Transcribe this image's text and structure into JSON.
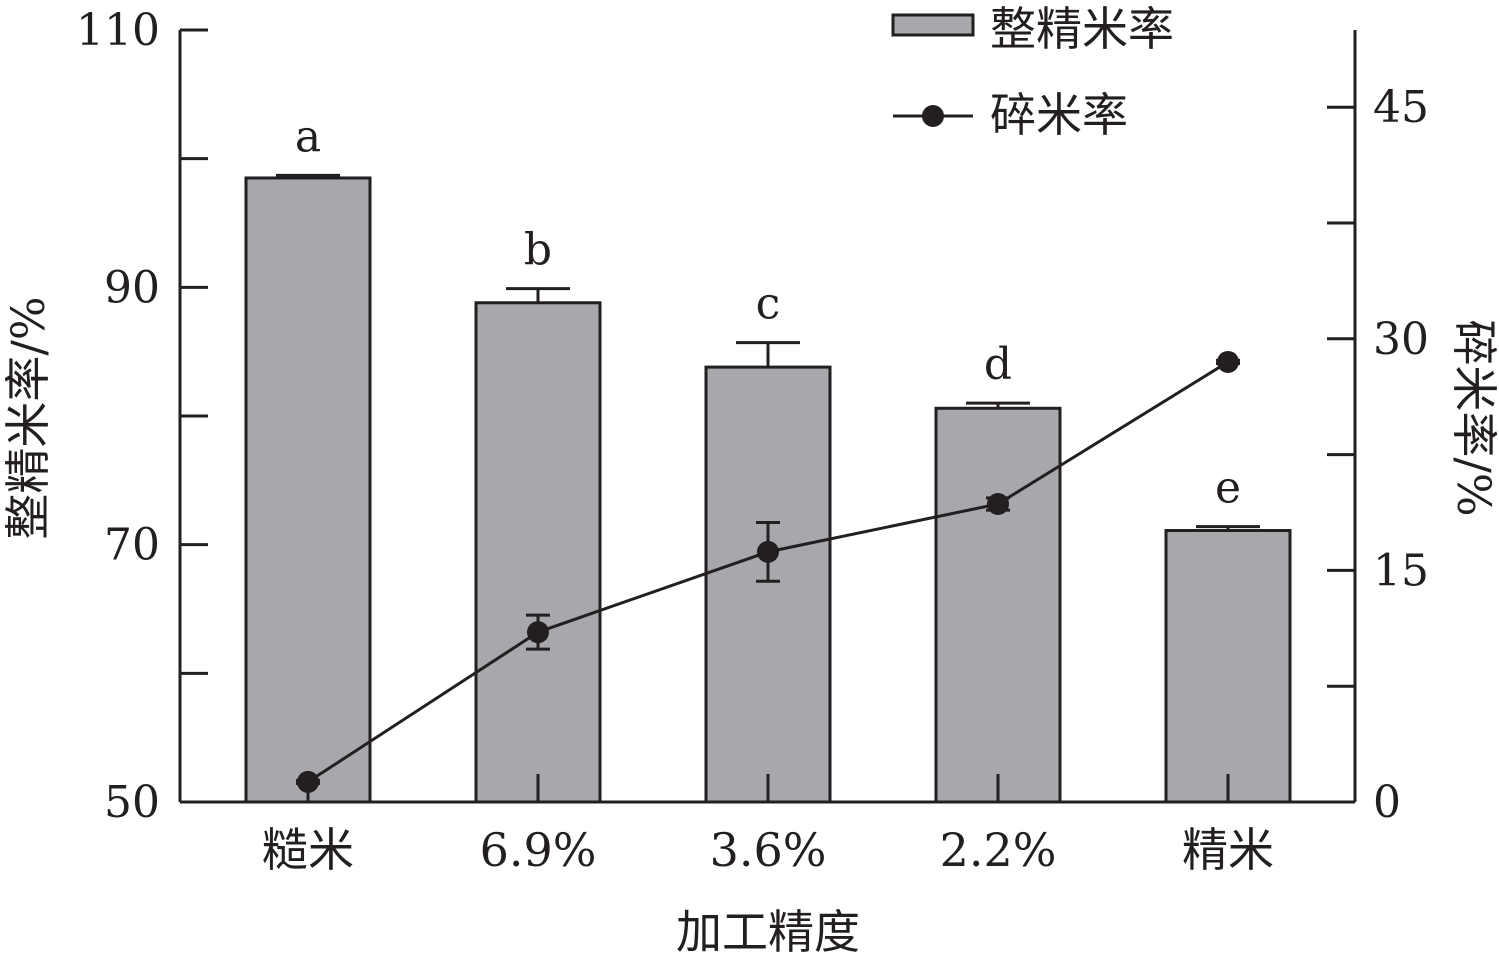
{
  "chart_data": {
    "type": "bar",
    "categories": [
      "糙米",
      "6.9%",
      "3.6%",
      "2.2%",
      "精米"
    ],
    "xlabel": "加工精度",
    "ylabel": "整精米率/%",
    "y2label": "碎米率/%",
    "ylim": [
      50,
      110
    ],
    "yticks": [
      50,
      70,
      90,
      110
    ],
    "y2lim": [
      0,
      50
    ],
    "y2ticks": [
      0,
      15,
      30,
      45
    ],
    "series": [
      {
        "name": "整精米率",
        "type": "bar",
        "axis": "left",
        "values": [
          98.5,
          88.8,
          83.8,
          80.6,
          71.1
        ],
        "errors": [
          0.2,
          1.1,
          1.9,
          0.4,
          0.3
        ],
        "labels": [
          "a",
          "b",
          "c",
          "d",
          "e"
        ]
      },
      {
        "name": "碎米率",
        "type": "line",
        "axis": "right",
        "values": [
          1.3,
          11.0,
          16.2,
          19.3,
          28.5
        ],
        "errors": [
          0.1,
          1.1,
          1.9,
          0.4,
          0.1
        ]
      }
    ],
    "legend": "top-right",
    "grid": false,
    "colors": {
      "bar_fill": "#a8a7ab",
      "stroke": "#231f20"
    }
  }
}
